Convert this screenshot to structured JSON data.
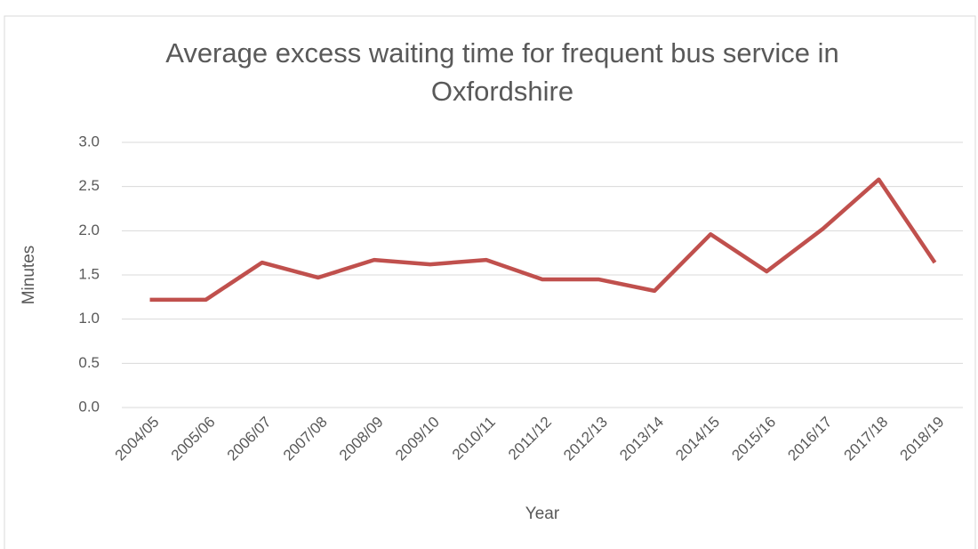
{
  "chart_data": {
    "type": "line",
    "title": "Average excess waiting time for frequent bus service in Oxfordshire",
    "title_lines": [
      "Average excess waiting time for frequent bus service in",
      "Oxfordshire"
    ],
    "x_label": "Year",
    "y_label": "Minutes",
    "categories": [
      "2004/05",
      "2005/06",
      "2006/07",
      "2007/08",
      "2008/09",
      "2009/10",
      "2010/11",
      "2011/12",
      "2012/13",
      "2013/14",
      "2014/15",
      "2015/16",
      "2016/17",
      "2017/18",
      "2018/19"
    ],
    "series": [
      {
        "name": "Minutes",
        "color": "#c0504d",
        "values": [
          1.22,
          1.22,
          1.64,
          1.47,
          1.67,
          1.62,
          1.67,
          1.45,
          1.45,
          1.32,
          1.96,
          1.54,
          2.02,
          2.58,
          1.64
        ]
      }
    ],
    "ylim": [
      0,
      3
    ],
    "yticks": [
      {
        "value": 0,
        "label": "0.0"
      },
      {
        "value": 0.5,
        "label": "0.5"
      },
      {
        "value": 1,
        "label": "1.0"
      },
      {
        "value": 1.5,
        "label": "1.5"
      },
      {
        "value": 2,
        "label": "2.0"
      },
      {
        "value": 2.5,
        "label": "2.5"
      },
      {
        "value": 3,
        "label": "3.0"
      }
    ],
    "grid": true
  }
}
